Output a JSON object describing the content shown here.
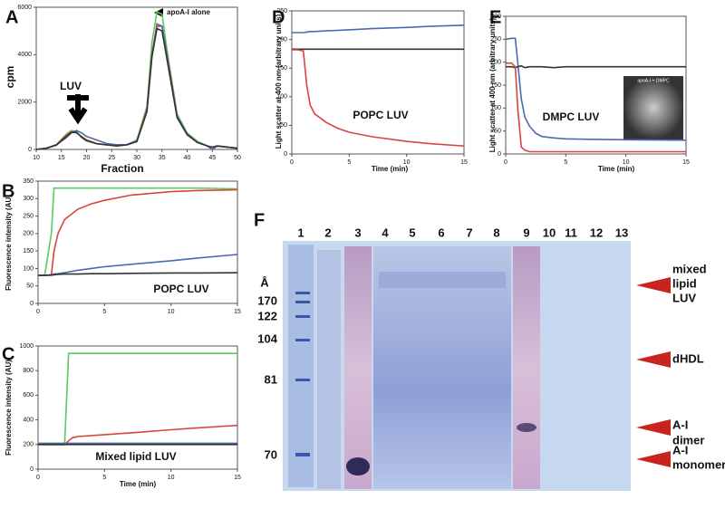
{
  "chart_data": [
    {
      "type": "line",
      "panel": "A",
      "xlabel": "Fraction",
      "ylabel": "cpm",
      "annotations": [
        "LUV",
        "apoA-I alone"
      ],
      "x": [
        10,
        12,
        14,
        16,
        17,
        18,
        19,
        20,
        22,
        24,
        26,
        28,
        30,
        32,
        33,
        34,
        35,
        36,
        38,
        40,
        42,
        44,
        45,
        46,
        48,
        50
      ],
      "series": [
        {
          "color": "#5ec95e",
          "values": [
            0,
            50,
            200,
            650,
            800,
            750,
            500,
            350,
            250,
            200,
            150,
            200,
            400,
            1800,
            4500,
            5800,
            5700,
            4200,
            1500,
            700,
            350,
            150,
            80,
            150,
            100,
            50
          ]
        },
        {
          "color": "#d9443f",
          "values": [
            0,
            50,
            200,
            600,
            750,
            700,
            550,
            400,
            250,
            200,
            150,
            200,
            350,
            1700,
            4000,
            5300,
            5200,
            4000,
            1400,
            650,
            300,
            150,
            100,
            150,
            100,
            50
          ]
        },
        {
          "color": "#4c68b0",
          "values": [
            0,
            50,
            200,
            500,
            700,
            800,
            700,
            550,
            400,
            250,
            200,
            200,
            350,
            1600,
            3900,
            5200,
            5200,
            3900,
            1400,
            650,
            300,
            150,
            0,
            150,
            100,
            50
          ]
        },
        {
          "color": "#333333",
          "values": [
            0,
            50,
            180,
            550,
            720,
            720,
            520,
            380,
            240,
            190,
            150,
            190,
            330,
            1600,
            3900,
            5100,
            5000,
            3800,
            1350,
            620,
            300,
            150,
            90,
            140,
            100,
            50
          ]
        }
      ],
      "xlim": [
        10,
        50
      ],
      "xticks": [
        10,
        15,
        20,
        25,
        30,
        35,
        40,
        45,
        50
      ],
      "ylim": [
        0,
        6000
      ],
      "yticks": [
        0,
        2000,
        4000,
        6000
      ]
    },
    {
      "type": "line",
      "panel": "B",
      "ylabel": "Fluorescence intensity (AU)",
      "annotations": [
        "POPC LUV"
      ],
      "x": [
        0,
        0.5,
        1,
        1.2,
        1.5,
        2,
        3,
        4,
        5,
        7,
        10,
        12,
        15
      ],
      "series": [
        {
          "color": "#5ec95e",
          "values": [
            80,
            80,
            200,
            330,
            330,
            330,
            330,
            330,
            330,
            330,
            330,
            330,
            328
          ]
        },
        {
          "color": "#d9443f",
          "values": [
            80,
            80,
            82,
            150,
            200,
            240,
            270,
            285,
            295,
            310,
            320,
            323,
            325
          ]
        },
        {
          "color": "#4c68b0",
          "values": [
            80,
            80,
            82,
            84,
            85,
            88,
            95,
            100,
            105,
            112,
            122,
            130,
            140
          ]
        },
        {
          "color": "#333333",
          "values": [
            80,
            80,
            81,
            82,
            83,
            84,
            84,
            85,
            85,
            86,
            87,
            87,
            88
          ]
        }
      ],
      "xlim": [
        0,
        15
      ],
      "xticks": [
        0,
        5,
        10,
        15
      ],
      "ylim": [
        0,
        350
      ],
      "yticks": [
        0,
        50,
        100,
        150,
        200,
        250,
        300,
        350
      ]
    },
    {
      "type": "line",
      "panel": "C",
      "xlabel": "Time (min)",
      "ylabel": "Fluorescence intensity (AU)",
      "annotations": [
        "Mixed lipid LUV"
      ],
      "x": [
        0,
        1,
        2,
        2.3,
        2.6,
        3,
        5,
        7,
        10,
        12,
        15
      ],
      "series": [
        {
          "color": "#5ec95e",
          "values": [
            200,
            200,
            200,
            940,
            940,
            940,
            940,
            940,
            940,
            940,
            940
          ]
        },
        {
          "color": "#d9443f",
          "values": [
            200,
            200,
            200,
            230,
            255,
            265,
            280,
            295,
            320,
            335,
            355
          ]
        },
        {
          "color": "#4c68b0",
          "values": [
            210,
            210,
            210,
            210,
            210,
            210,
            210,
            210,
            210,
            210,
            210
          ]
        },
        {
          "color": "#333333",
          "values": [
            200,
            200,
            200,
            200,
            200,
            200,
            200,
            200,
            200,
            200,
            200
          ]
        }
      ],
      "xlim": [
        0,
        15
      ],
      "xticks": [
        0,
        5,
        10,
        15
      ],
      "ylim": [
        0,
        1000
      ],
      "yticks": [
        0,
        200,
        400,
        600,
        800,
        1000
      ]
    },
    {
      "type": "line",
      "panel": "D",
      "xlabel": "Time (min)",
      "ylabel": "Light scatter at 400 nm (arbitrary units)",
      "annotations": [
        "POPC LUV"
      ],
      "x": [
        0,
        0.5,
        1,
        1.3,
        1.6,
        2,
        3,
        4,
        5,
        7,
        10,
        12,
        15
      ],
      "series": [
        {
          "color": "#4c68b0",
          "values": [
            212,
            212,
            212,
            213,
            214,
            214,
            215,
            216,
            217,
            219,
            221,
            223,
            225
          ]
        },
        {
          "color": "#333333",
          "values": [
            183,
            183,
            183,
            183,
            183,
            183,
            183,
            183,
            183,
            183,
            183,
            183,
            183
          ]
        },
        {
          "color": "#d9443f",
          "values": [
            182,
            182,
            180,
            120,
            85,
            70,
            55,
            45,
            38,
            30,
            22,
            18,
            14
          ]
        }
      ],
      "xlim": [
        0,
        15
      ],
      "xticks": [
        0,
        5,
        10,
        15
      ],
      "ylim": [
        0,
        250
      ],
      "yticks": [
        0,
        50,
        100,
        150,
        200,
        250
      ]
    },
    {
      "type": "line",
      "panel": "E",
      "xlabel": "Time (min)",
      "ylabel": "Light scatter at 400 nm (arbitrary units)",
      "annotations": [
        "DMPC LUV"
      ],
      "inset_label": "apoA-I + DMPC",
      "x": [
        0,
        0.5,
        0.8,
        1,
        1.3,
        1.6,
        2,
        2.5,
        3,
        4,
        5,
        7,
        10,
        15
      ],
      "series": [
        {
          "color": "#4c68b0",
          "values": [
            250,
            252,
            252,
            200,
            120,
            80,
            60,
            45,
            38,
            35,
            33,
            32,
            31,
            30
          ]
        },
        {
          "color": "#333333",
          "values": [
            190,
            190,
            188,
            190,
            192,
            188,
            190,
            190,
            190,
            188,
            190,
            190,
            190,
            190
          ]
        },
        {
          "color": "#d9443f",
          "values": [
            198,
            198,
            190,
            100,
            15,
            8,
            5,
            5,
            5,
            5,
            5,
            5,
            5,
            5
          ]
        }
      ],
      "xlim": [
        0,
        15
      ],
      "xticks": [
        0,
        5,
        10,
        15
      ],
      "ylim": [
        0,
        300
      ],
      "yticks": [
        0,
        50,
        100,
        150,
        200,
        250,
        300
      ]
    }
  ],
  "gel": {
    "panel": "F",
    "size_unit": "Å",
    "lanes": [
      "1",
      "2",
      "3",
      "4",
      "5",
      "6",
      "7",
      "8",
      "9",
      "10",
      "11",
      "12",
      "13"
    ],
    "markers": [
      "170",
      "122",
      "104",
      "81",
      "70"
    ],
    "bands": [
      [
        "mixed",
        "lipid",
        "LUV"
      ],
      [
        "dHDL"
      ],
      [
        "A-I",
        "dimer"
      ],
      [
        "A-I",
        "monomer"
      ]
    ]
  }
}
